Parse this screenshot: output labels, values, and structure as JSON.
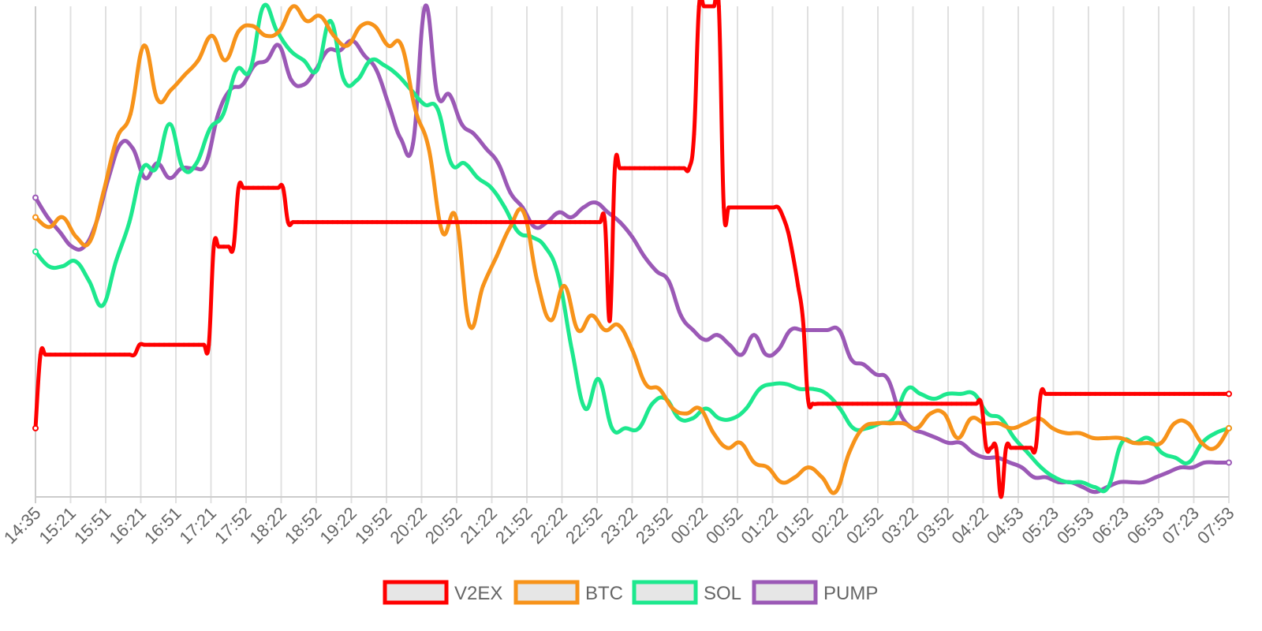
{
  "chart_data": {
    "type": "line",
    "x_ticks": [
      "14:35",
      "15:21",
      "15:51",
      "16:21",
      "16:51",
      "17:21",
      "17:52",
      "18:22",
      "18:52",
      "19:22",
      "19:52",
      "20:22",
      "20:52",
      "21:22",
      "21:52",
      "22:22",
      "22:52",
      "23:22",
      "23:52",
      "00:22",
      "00:52",
      "01:22",
      "01:52",
      "02:22",
      "02:52",
      "03:22",
      "03:52",
      "04:22",
      "04:53",
      "05:23",
      "05:53",
      "06:23",
      "06:53",
      "07:23",
      "07:53"
    ],
    "y_ticks_shown": false,
    "ylim": [
      0,
      100
    ],
    "grid": "vertical",
    "legend_position": "bottom",
    "series": [
      {
        "name": "V2EX",
        "color": "#ff0000",
        "values": [
          14,
          29,
          29,
          29,
          29,
          29,
          29,
          29,
          29,
          29,
          29,
          29,
          29,
          29,
          29,
          29,
          29,
          29,
          29,
          29,
          29,
          31,
          31,
          31,
          31,
          31,
          31,
          31,
          31,
          31,
          31,
          31,
          31,
          31,
          31,
          31,
          51,
          51,
          51,
          51,
          51,
          63,
          63,
          63,
          63,
          63,
          63,
          63,
          63,
          63,
          63,
          56,
          56,
          56,
          56,
          56,
          56,
          56,
          56,
          56,
          56,
          56,
          56,
          56,
          56,
          56,
          56,
          56,
          56,
          56,
          56,
          56,
          56,
          56,
          56,
          56,
          56,
          56,
          56,
          56,
          56,
          56,
          56,
          56,
          56,
          56,
          56,
          56,
          56,
          56,
          56,
          56,
          56,
          56,
          56,
          56,
          56,
          56,
          56,
          56,
          56,
          56,
          56,
          56,
          56,
          56,
          56,
          56,
          56,
          56,
          56,
          56,
          56,
          56,
          56,
          56,
          36,
          67,
          67,
          67,
          67,
          67,
          67,
          67,
          67,
          67,
          67,
          67,
          67,
          67,
          67,
          67,
          67,
          74,
          100,
          100,
          100,
          100,
          100,
          59,
          59,
          59,
          59,
          59,
          59,
          59,
          59,
          59,
          59,
          59,
          59,
          57,
          54,
          49,
          43,
          36,
          20,
          19,
          19,
          19,
          19,
          19,
          19,
          19,
          19,
          19,
          19,
          19,
          19,
          19,
          19,
          19,
          19,
          19,
          19,
          19,
          19,
          19,
          19,
          19,
          19,
          19,
          19,
          19,
          19,
          19,
          19,
          19,
          19,
          19,
          19,
          19,
          10,
          10,
          10,
          0,
          10,
          10,
          10,
          10,
          10,
          10,
          10,
          21,
          21,
          21,
          21,
          21,
          21,
          21,
          21,
          21,
          21,
          21,
          21,
          21,
          21,
          21,
          21,
          21,
          21,
          21,
          21,
          21,
          21,
          21,
          21,
          21,
          21,
          21,
          21,
          21,
          21,
          21,
          21,
          21,
          21,
          21,
          21,
          21,
          21,
          21
        ]
      },
      {
        "name": "BTC",
        "color": "#f7931a",
        "values": [
          57,
          55,
          57,
          53,
          52,
          62,
          73,
          78,
          92,
          81,
          83,
          86,
          89,
          94,
          89,
          95,
          96,
          94,
          95,
          100,
          97,
          98,
          94,
          92,
          96,
          96,
          92,
          92,
          79,
          71,
          54,
          57,
          35,
          43,
          49,
          55,
          58,
          44,
          36,
          43,
          34,
          37,
          34,
          35,
          30,
          23,
          22,
          18,
          17,
          18,
          13,
          10,
          11,
          7,
          6,
          3,
          4,
          6,
          4,
          1,
          9,
          14,
          15,
          15,
          15,
          14,
          17,
          17,
          12,
          16,
          15,
          15,
          14,
          15,
          16,
          14,
          13,
          13,
          12,
          12,
          12,
          11,
          11,
          11,
          15,
          15,
          11,
          10,
          14
        ]
      },
      {
        "name": "SOL",
        "color": "#1de88e",
        "values": [
          50,
          47,
          47,
          48,
          44,
          39,
          48,
          56,
          67,
          67,
          76,
          67,
          68,
          75,
          78,
          87,
          87,
          100,
          95,
          91,
          89,
          87,
          97,
          85,
          85,
          89,
          88,
          86,
          83,
          80,
          79,
          68,
          68,
          65,
          63,
          59,
          54,
          53,
          51,
          45,
          30,
          18,
          24,
          14,
          14,
          14,
          19,
          20,
          16,
          16,
          18,
          16,
          16,
          18,
          22,
          23,
          23,
          22,
          22,
          21,
          18,
          14,
          14,
          15,
          16,
          22,
          21,
          20,
          21,
          21,
          21,
          17,
          16,
          12,
          9,
          6,
          4,
          3,
          3,
          2,
          2,
          11,
          11,
          12,
          9,
          8,
          7,
          11,
          13,
          14
        ]
      },
      {
        "name": "PUMP",
        "color": "#9b59b6",
        "values": [
          61,
          57,
          54,
          51,
          51,
          56,
          65,
          72,
          71,
          65,
          68,
          65,
          67,
          67,
          68,
          78,
          83,
          84,
          88,
          89,
          92,
          85,
          84,
          87,
          91,
          91,
          93,
          90,
          87,
          80,
          73,
          72,
          100,
          82,
          82,
          76,
          74,
          71,
          68,
          62,
          59,
          55,
          56,
          58,
          57,
          59,
          60,
          58,
          56,
          53,
          49,
          46,
          44,
          37,
          34,
          32,
          33,
          31,
          29,
          33,
          29,
          30,
          34,
          34,
          34,
          34,
          34,
          28,
          27,
          25,
          24,
          17,
          14,
          13,
          12,
          11,
          11,
          9,
          8,
          8,
          7,
          6,
          4,
          4,
          3,
          3,
          2,
          1,
          2,
          3,
          3,
          3,
          4,
          5,
          6,
          6,
          7,
          7,
          7
        ]
      }
    ],
    "legend": [
      "V2EX",
      "BTC",
      "SOL",
      "PUMP"
    ]
  }
}
